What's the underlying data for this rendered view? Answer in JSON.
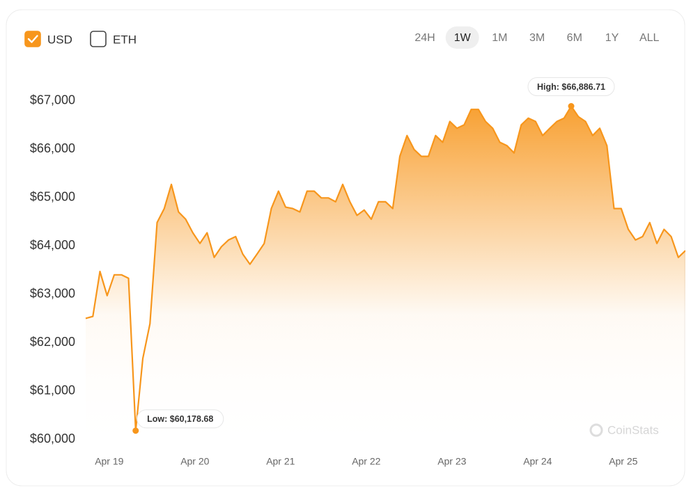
{
  "currencies": [
    {
      "label": "USD",
      "checked": true
    },
    {
      "label": "ETH",
      "checked": false
    }
  ],
  "ranges": [
    "24H",
    "1W",
    "1M",
    "3M",
    "6M",
    "1Y",
    "ALL"
  ],
  "selected_range": "1W",
  "watermark": "CoinStats",
  "chart_data": {
    "type": "area",
    "color": "#f7961c",
    "high_label": "High: $66,886.71",
    "low_label": "Low: $60,178.68",
    "xlim": [
      0,
      84
    ],
    "xticks": [
      {
        "value": 3.3,
        "label": "Apr 19"
      },
      {
        "value": 15.3,
        "label": "Apr 20"
      },
      {
        "value": 27.3,
        "label": "Apr 21"
      },
      {
        "value": 39.3,
        "label": "Apr 22"
      },
      {
        "value": 51.3,
        "label": "Apr 23"
      },
      {
        "value": 63.3,
        "label": "Apr 24"
      },
      {
        "value": 75.3,
        "label": "Apr 25"
      }
    ],
    "ylim": [
      59700,
      67700
    ],
    "yticks": [
      {
        "value": 60000,
        "label": "$60,000"
      },
      {
        "value": 61000,
        "label": "$61,000"
      },
      {
        "value": 62000,
        "label": "$62,000"
      },
      {
        "value": 63000,
        "label": "$63,000"
      },
      {
        "value": 64000,
        "label": "$64,000"
      },
      {
        "value": 65000,
        "label": "$65,000"
      },
      {
        "value": 66000,
        "label": "$66,000"
      },
      {
        "value": 67000,
        "label": "$67,000"
      }
    ],
    "values": [
      62500,
      62540,
      63470,
      62970,
      63400,
      63400,
      63330,
      60178.68,
      61670,
      62390,
      64480,
      64770,
      65270,
      64700,
      64550,
      64270,
      64050,
      64270,
      63760,
      63980,
      64120,
      64190,
      63830,
      63620,
      63830,
      64050,
      64770,
      65130,
      64800,
      64770,
      64700,
      65130,
      65130,
      64990,
      64990,
      64910,
      65270,
      64910,
      64630,
      64740,
      64550,
      64910,
      64910,
      64770,
      65850,
      66280,
      65990,
      65850,
      65850,
      66280,
      66140,
      66570,
      66430,
      66500,
      66820,
      66820,
      66570,
      66430,
      66140,
      66070,
      65920,
      66500,
      66640,
      66570,
      66280,
      66430,
      66570,
      66640,
      66886.71,
      66670,
      66570,
      66280,
      66430,
      66070,
      64770,
      64770,
      64340,
      64120,
      64190,
      64480,
      64050,
      64340,
      64190,
      63760,
      63900
    ]
  }
}
